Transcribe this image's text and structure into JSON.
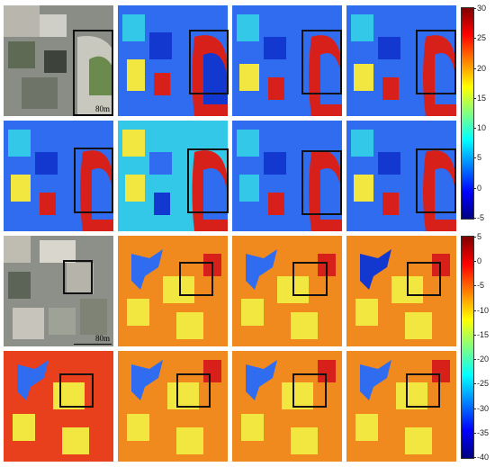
{
  "scale_label_top": "80m",
  "scale_label_bottom": "80m",
  "colorbar_top": {
    "ticks": [
      "30",
      "25",
      "20",
      "15",
      "10",
      "5",
      "0",
      "-5"
    ]
  },
  "colorbar_bottom": {
    "ticks": [
      "5",
      "0",
      "-5",
      "-10",
      "-15",
      "-20",
      "-25",
      "-30",
      "-35",
      "-40"
    ]
  },
  "colors": {
    "deep_blue": "#1238d0",
    "blue": "#2f6cf0",
    "cyan": "#33c8e8",
    "yellow": "#f2e640",
    "red": "#d8201a",
    "orange": "#f08a1e",
    "dark_red": "#8a0b0b"
  }
}
